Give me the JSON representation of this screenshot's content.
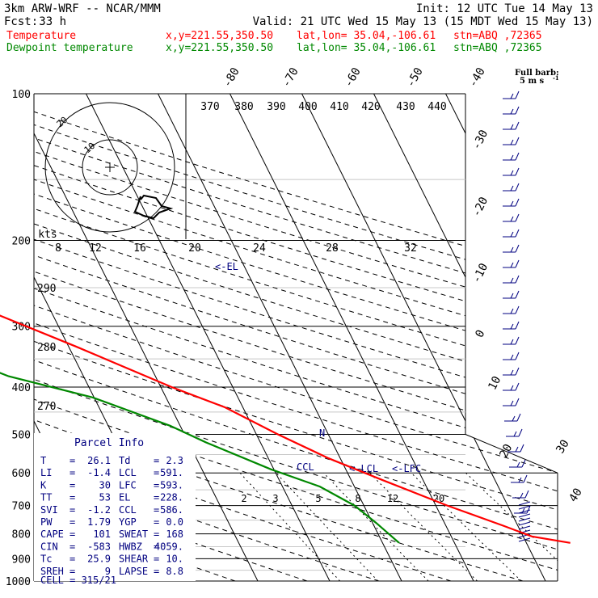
{
  "header": {
    "model": "3km ARW-WRF -- NCAR/MMM",
    "init": "Init: 12 UTC Tue 14 May 13",
    "fcst_label": "Fcst:",
    "fcst_value": "33 h",
    "valid": "Valid: 21 UTC Wed 15 May 13 (15 MDT Wed 15 May 13)",
    "temp_label": "Temperature",
    "dew_label": "Dewpoint temperature",
    "xy": "x,y=221.55,350.50",
    "latlon": "lat,lon= 35.04,-106.61",
    "stn": "stn=ABQ ,72365",
    "full_barb_1": "Full barb:",
    "full_barb_2": "5 m s",
    "full_barb_exp": "-1"
  },
  "colors": {
    "temperature": "#ff0000",
    "dewpoint": "#008800",
    "parcel_text": "#000080",
    "isotherm": "#000000",
    "mixing_ratio": "#000000"
  },
  "chart_data": {
    "type": "line",
    "title": "3km ARW-WRF -- NCAR/MMM",
    "xlabel": "",
    "ylabel": "",
    "pressure_levels": [
      100,
      200,
      300,
      400,
      500,
      600,
      700,
      800,
      900,
      1000
    ],
    "isotherm_labels": [
      -80,
      -70,
      -60,
      -50,
      -40,
      -30,
      -20,
      -10,
      0,
      10,
      20,
      30,
      40
    ],
    "theta_e_labels": [
      370,
      380,
      390,
      400,
      410,
      420,
      430,
      440
    ],
    "hodo_speed_labels": [
      "kts",
      "8",
      "12",
      "16",
      "20",
      "24",
      "28",
      "32"
    ],
    "theta_labels": [
      290,
      280,
      270
    ],
    "mixing_ratio_labels": [
      2,
      3,
      5,
      8,
      12,
      20
    ],
    "hodograph_ring_labels": [
      "20",
      "10"
    ],
    "level_markers": [
      "<-EL",
      "CCL",
      "<-LCL",
      "<-LFC",
      "N"
    ],
    "series": [
      {
        "name": "Temperature",
        "color": "#ff0000",
        "points": [
          {
            "p": 835,
            "t": 26.1
          },
          {
            "p": 810,
            "t": 21.2
          },
          {
            "p": 770,
            "t": 18.0
          },
          {
            "p": 700,
            "t": 11.6
          },
          {
            "p": 620,
            "t": 4.3
          },
          {
            "p": 560,
            "t": -1.6
          },
          {
            "p": 500,
            "t": -7.0
          },
          {
            "p": 440,
            "t": -12.5
          },
          {
            "p": 400,
            "t": -18.5
          },
          {
            "p": 330,
            "t": -29.0
          },
          {
            "p": 280,
            "t": -38.5
          },
          {
            "p": 245,
            "t": -46.2
          },
          {
            "p": 225,
            "t": -51.6
          },
          {
            "p": 210,
            "t": -52.8
          },
          {
            "p": 200,
            "t": -53.1
          },
          {
            "p": 170,
            "t": -58.8
          },
          {
            "p": 145,
            "t": -63.6
          },
          {
            "p": 125,
            "t": -67.5
          },
          {
            "p": 100,
            "t": -70.3
          }
        ]
      },
      {
        "name": "Dewpoint temperature",
        "color": "#008800",
        "points": [
          {
            "p": 835,
            "t": 2.3
          },
          {
            "p": 760,
            "t": 0.5
          },
          {
            "p": 700,
            "t": -1.3
          },
          {
            "p": 640,
            "t": -4.8
          },
          {
            "p": 590,
            "t": -10.4
          },
          {
            "p": 520,
            "t": -17.5
          },
          {
            "p": 480,
            "t": -21.4
          },
          {
            "p": 420,
            "t": -30.2
          },
          {
            "p": 380,
            "t": -40.4
          },
          {
            "p": 300,
            "t": -54.9
          },
          {
            "p": 265,
            "t": -60.9
          },
          {
            "p": 245,
            "t": -62.9
          },
          {
            "p": 210,
            "t": -66.0
          },
          {
            "p": 190,
            "t": -68.4
          },
          {
            "p": 160,
            "t": -73.3
          },
          {
            "p": 140,
            "t": -78.8
          },
          {
            "p": 120,
            "t": -83.9
          },
          {
            "p": 100,
            "t": -88.5
          }
        ]
      }
    ]
  },
  "parcel_info": {
    "title": "Parcel Info",
    "rows": [
      {
        "l1": "T",
        "v1": "26.1",
        "l2": "Td",
        "v2": "2.3"
      },
      {
        "l1": "LI",
        "v1": "-1.4",
        "l2": "LCL",
        "v2": "591."
      },
      {
        "l1": "K",
        "v1": "30",
        "l2": "LFC",
        "v2": "593."
      },
      {
        "l1": "TT",
        "v1": "53",
        "l2": "EL",
        "v2": "228."
      },
      {
        "l1": "SVI",
        "v1": "-1.2",
        "l2": "CCL",
        "v2": "586."
      },
      {
        "l1": "PW",
        "v1": "1.79",
        "l2": "YGP",
        "v2": "0.0"
      },
      {
        "l1": "CAPE",
        "v1": "101",
        "l2": "SWEAT",
        "v2": "168"
      },
      {
        "l1": "CIN",
        "v1": "-583",
        "l2": "HWBZ",
        "v2": "4059."
      },
      {
        "l1": "Tc",
        "v1": "25.9",
        "l2": "SHEAR",
        "v2": "10."
      },
      {
        "l1": "SREH",
        "v1": "9",
        "l2": "LAPSE",
        "v2": "8.8"
      }
    ],
    "cell": "CELL = 315/21"
  }
}
